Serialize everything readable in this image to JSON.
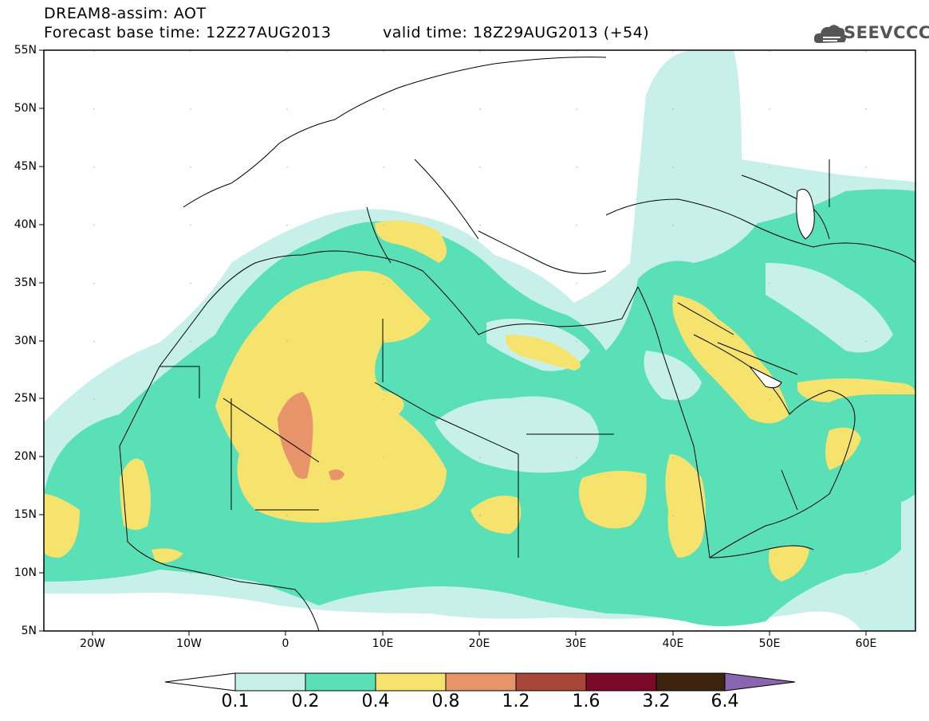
{
  "header": {
    "line1": "DREAM8-assim: AOT",
    "line2": "Forecast base time: 12Z27AUG2013",
    "valid": "valid time: 18Z29AUG2013 (+54)",
    "logo": "SEEVCCC"
  },
  "axes": {
    "lat_labels": [
      "55N",
      "50N",
      "45N",
      "40N",
      "35N",
      "30N",
      "25N",
      "20N",
      "15N",
      "10N",
      "5N"
    ],
    "lon_labels": [
      "20W",
      "10W",
      "0",
      "10E",
      "20E",
      "30E",
      "40E",
      "50E",
      "60E"
    ]
  },
  "colorbar": {
    "labels": [
      "0.1",
      "0.2",
      "0.4",
      "0.8",
      "1.2",
      "1.6",
      "3.2",
      "6.4"
    ],
    "colors": [
      "#c8f0ea",
      "#5ae0b6",
      "#f5e36e",
      "#e8946a",
      "#a8463a",
      "#7a0a28",
      "#3c2410",
      "#8a66b0"
    ]
  },
  "legend_colors": {
    "water": "#ffffff",
    "lvl1": "#c8f0ea",
    "lvl2": "#5ae0b6",
    "lvl3": "#f5e36e",
    "lvl4": "#e8946a"
  }
}
